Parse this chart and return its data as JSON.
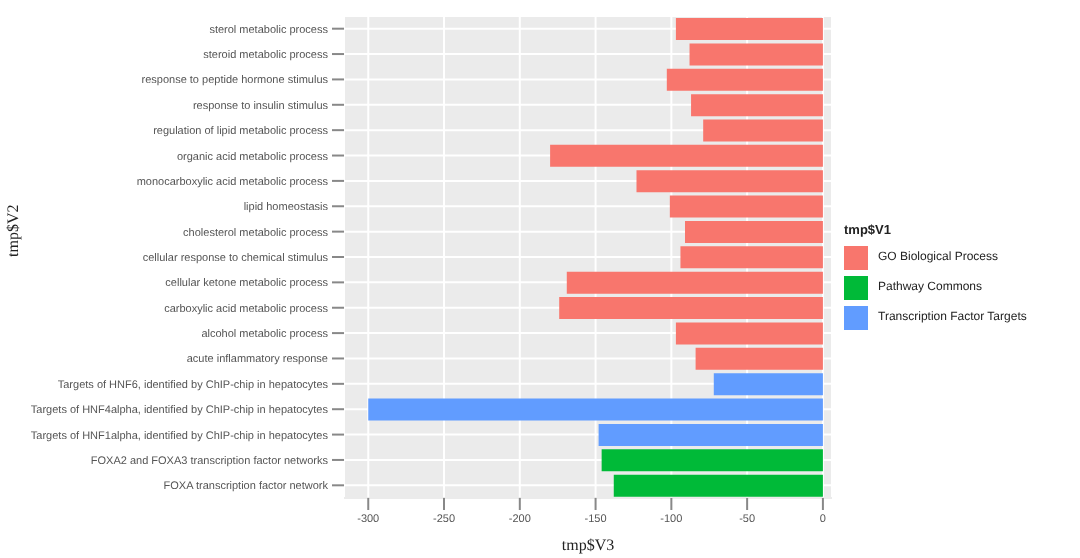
{
  "chart_data": {
    "type": "bar",
    "orientation": "horizontal",
    "stacked": true,
    "xlabel": "tmp$V3",
    "ylabel": "tmp$V2",
    "legend_title": "tmp$V1",
    "legend": "right",
    "grid": true,
    "categories": [
      "sterol metabolic process",
      "steroid metabolic process",
      "response to peptide hormone stimulus",
      "response to insulin stimulus",
      "regulation of lipid metabolic process",
      "organic acid metabolic process",
      "monocarboxylic acid metabolic process",
      "lipid homeostasis",
      "cholesterol metabolic process",
      "cellular response to chemical stimulus",
      "cellular ketone metabolic process",
      "carboxylic acid metabolic process",
      "alcohol metabolic process",
      "acute inflammatory response",
      "Targets of HNF6, identified by ChIP-chip in hepatocytes",
      "Targets of HNF4alpha, identified by ChIP-chip in hepatocytes",
      "Targets of HNF1alpha, identified by ChIP-chip in hepatocytes",
      "FOXA2 and FOXA3 transcription factor networks",
      "FOXA transcription factor network"
    ],
    "xlim": [
      -316,
      6
    ],
    "xticks": [
      -300,
      -250,
      -200,
      -150,
      -100,
      -50,
      0
    ],
    "series": [
      {
        "name": "GO Biological Process",
        "color": "#f8766d",
        "values": [
          -97,
          -88,
          -103,
          -87,
          -79,
          -180,
          -123,
          -101,
          -91,
          -94,
          -169,
          -174,
          -97,
          -84,
          null,
          null,
          null,
          null,
          null
        ]
      },
      {
        "name": "Pathway Commons",
        "color": "#00ba38",
        "values": [
          null,
          null,
          null,
          null,
          null,
          null,
          null,
          null,
          null,
          null,
          null,
          null,
          null,
          null,
          null,
          null,
          null,
          -146,
          -138
        ]
      },
      {
        "name": "Transcription Factor Targets",
        "color": "#619cff",
        "values": [
          null,
          null,
          null,
          null,
          null,
          null,
          null,
          null,
          null,
          null,
          null,
          null,
          null,
          null,
          -72,
          -300,
          -148,
          null,
          null
        ]
      }
    ]
  }
}
